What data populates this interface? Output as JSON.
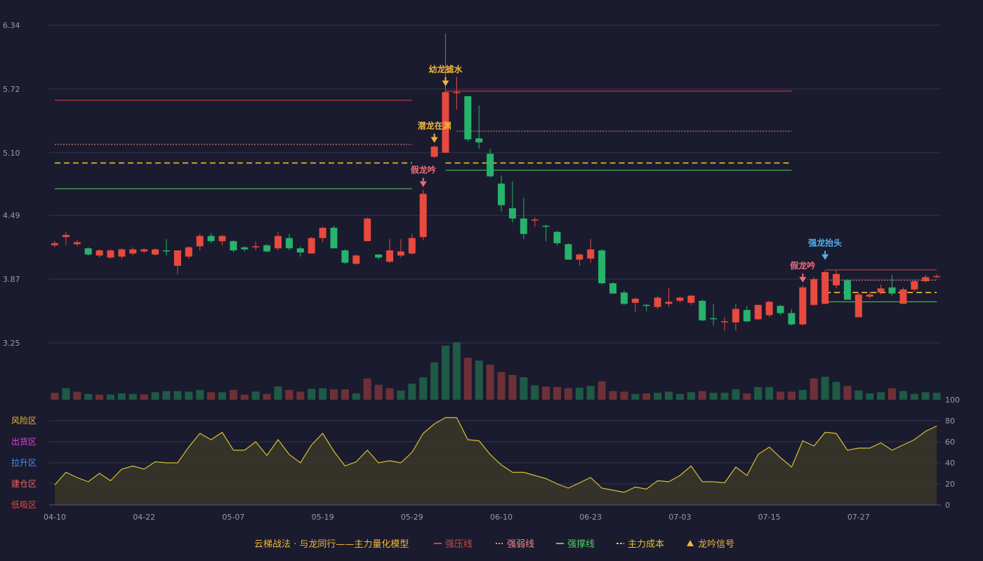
{
  "chart_data": {
    "type": "candlestick",
    "colors": {
      "up": "#e84a3f",
      "down": "#26b36b",
      "vol_up": "#6e3038",
      "vol_down": "#1e5a45",
      "pressure": "#d4434a",
      "weak": "#f08a8a",
      "support": "#50d060",
      "cost": "#e8c22a",
      "osc": "#d8c030",
      "gold": "#f2b53a",
      "blue": "#4fb0f0",
      "pink": "#f06a7a"
    },
    "price_axis": {
      "min": 3.25,
      "max": 6.34,
      "ticks": [
        "6.34",
        "5.72",
        "5.10",
        "4.49",
        "3.87",
        "3.25"
      ]
    },
    "osc_axis": {
      "min": 0,
      "max": 100,
      "ticks": [
        "100",
        "80",
        "60",
        "40",
        "20",
        "0"
      ]
    },
    "x_labels": [
      {
        "i": 0,
        "label": "04-10"
      },
      {
        "i": 8,
        "label": "04-22"
      },
      {
        "i": 16,
        "label": "05-07"
      },
      {
        "i": 24,
        "label": "05-19"
      },
      {
        "i": 32,
        "label": "05-29"
      },
      {
        "i": 40,
        "label": "06-10"
      },
      {
        "i": 48,
        "label": "06-23"
      },
      {
        "i": 56,
        "label": "07-03"
      },
      {
        "i": 64,
        "label": "07-15"
      },
      {
        "i": 72,
        "label": "07-27"
      }
    ],
    "candles": [
      [
        4.2,
        4.22,
        4.18,
        4.24
      ],
      [
        4.28,
        4.3,
        4.2,
        4.33
      ],
      [
        4.21,
        4.23,
        4.19,
        4.25
      ],
      [
        4.17,
        4.11,
        4.1,
        4.18
      ],
      [
        4.1,
        4.15,
        4.08,
        4.16
      ],
      [
        4.08,
        4.15,
        4.07,
        4.16
      ],
      [
        4.09,
        4.16,
        4.07,
        4.17
      ],
      [
        4.12,
        4.16,
        4.1,
        4.18
      ],
      [
        4.14,
        4.16,
        4.12,
        4.17
      ],
      [
        4.11,
        4.16,
        4.1,
        4.17
      ],
      [
        4.15,
        4.14,
        4.1,
        4.26
      ],
      [
        4.0,
        4.15,
        3.92,
        4.15
      ],
      [
        4.09,
        4.18,
        4.07,
        4.19
      ],
      [
        4.19,
        4.29,
        4.15,
        4.31
      ],
      [
        4.29,
        4.24,
        4.22,
        4.32
      ],
      [
        4.24,
        4.29,
        4.2,
        4.3
      ],
      [
        4.24,
        4.15,
        4.13,
        4.25
      ],
      [
        4.18,
        4.16,
        4.14,
        4.19
      ],
      [
        4.18,
        4.19,
        4.15,
        4.24
      ],
      [
        4.2,
        4.14,
        4.13,
        4.21
      ],
      [
        4.17,
        4.29,
        4.15,
        4.33
      ],
      [
        4.27,
        4.17,
        4.15,
        4.31
      ],
      [
        4.17,
        4.13,
        4.09,
        4.19
      ],
      [
        4.12,
        4.27,
        4.12,
        4.28
      ],
      [
        4.27,
        4.37,
        4.23,
        4.38
      ],
      [
        4.37,
        4.17,
        4.17,
        4.39
      ],
      [
        4.15,
        4.03,
        4.02,
        4.16
      ],
      [
        4.02,
        4.1,
        4.01,
        4.11
      ],
      [
        4.24,
        4.46,
        4.24,
        4.47
      ],
      [
        4.11,
        4.08,
        4.06,
        4.11
      ],
      [
        4.04,
        4.15,
        4.03,
        4.26
      ],
      [
        4.1,
        4.14,
        4.08,
        4.26
      ],
      [
        4.12,
        4.27,
        4.11,
        4.31
      ],
      [
        4.28,
        4.7,
        4.25,
        4.74
      ],
      [
        5.06,
        5.16,
        5.05,
        5.17
      ],
      [
        5.1,
        5.69,
        5.1,
        6.26
      ],
      [
        5.69,
        5.69,
        5.52,
        5.84
      ],
      [
        5.65,
        5.23,
        5.21,
        5.65
      ],
      [
        5.24,
        5.2,
        5.14,
        5.56
      ],
      [
        5.09,
        4.87,
        4.86,
        5.14
      ],
      [
        4.8,
        4.59,
        4.53,
        4.88
      ],
      [
        4.56,
        4.46,
        4.42,
        4.82
      ],
      [
        4.46,
        4.31,
        4.26,
        4.66
      ],
      [
        4.45,
        4.45,
        4.38,
        4.47
      ],
      [
        4.39,
        4.38,
        4.24,
        4.4
      ],
      [
        4.33,
        4.22,
        4.2,
        4.34
      ],
      [
        4.21,
        4.06,
        4.06,
        4.22
      ],
      [
        4.06,
        4.11,
        4.0,
        4.12
      ],
      [
        4.07,
        4.16,
        4.03,
        4.26
      ],
      [
        4.15,
        3.83,
        3.82,
        4.16
      ],
      [
        3.83,
        3.73,
        3.73,
        3.84
      ],
      [
        3.74,
        3.63,
        3.62,
        3.76
      ],
      [
        3.64,
        3.68,
        3.55,
        3.69
      ],
      [
        3.62,
        3.61,
        3.56,
        3.63
      ],
      [
        3.6,
        3.69,
        3.58,
        3.71
      ],
      [
        3.63,
        3.65,
        3.6,
        3.78
      ],
      [
        3.66,
        3.69,
        3.64,
        3.7
      ],
      [
        3.64,
        3.71,
        3.62,
        3.71
      ],
      [
        3.66,
        3.47,
        3.46,
        3.67
      ],
      [
        3.49,
        3.48,
        3.42,
        3.63
      ],
      [
        3.46,
        3.46,
        3.37,
        3.5
      ],
      [
        3.45,
        3.58,
        3.37,
        3.63
      ],
      [
        3.57,
        3.46,
        3.45,
        3.61
      ],
      [
        3.48,
        3.62,
        3.47,
        3.62
      ],
      [
        3.52,
        3.65,
        3.5,
        3.66
      ],
      [
        3.61,
        3.54,
        3.52,
        3.62
      ],
      [
        3.54,
        3.43,
        3.42,
        3.58
      ],
      [
        3.43,
        3.79,
        3.42,
        3.81
      ],
      [
        3.62,
        3.87,
        3.61,
        3.89
      ],
      [
        3.63,
        3.94,
        3.63,
        3.95
      ],
      [
        3.81,
        3.92,
        3.78,
        3.96
      ],
      [
        3.86,
        3.67,
        3.67,
        3.87
      ],
      [
        3.5,
        3.72,
        3.5,
        3.74
      ],
      [
        3.7,
        3.72,
        3.68,
        3.75
      ],
      [
        3.74,
        3.78,
        3.72,
        3.82
      ],
      [
        3.79,
        3.73,
        3.71,
        3.91
      ],
      [
        3.63,
        3.77,
        3.63,
        3.79
      ],
      [
        3.77,
        3.85,
        3.75,
        3.86
      ],
      [
        3.85,
        3.89,
        3.84,
        3.91
      ],
      [
        3.9,
        3.9,
        3.88,
        3.92
      ]
    ],
    "volume": [
      [
        0.12,
        "u"
      ],
      [
        0.2,
        "d"
      ],
      [
        0.14,
        "u"
      ],
      [
        0.1,
        "d"
      ],
      [
        0.09,
        "u"
      ],
      [
        0.09,
        "d"
      ],
      [
        0.11,
        "d"
      ],
      [
        0.1,
        "d"
      ],
      [
        0.09,
        "u"
      ],
      [
        0.13,
        "d"
      ],
      [
        0.15,
        "d"
      ],
      [
        0.15,
        "d"
      ],
      [
        0.14,
        "d"
      ],
      [
        0.17,
        "d"
      ],
      [
        0.13,
        "u"
      ],
      [
        0.13,
        "d"
      ],
      [
        0.17,
        "u"
      ],
      [
        0.09,
        "u"
      ],
      [
        0.14,
        "d"
      ],
      [
        0.1,
        "u"
      ],
      [
        0.23,
        "d"
      ],
      [
        0.17,
        "u"
      ],
      [
        0.14,
        "u"
      ],
      [
        0.19,
        "d"
      ],
      [
        0.2,
        "d"
      ],
      [
        0.18,
        "u"
      ],
      [
        0.18,
        "u"
      ],
      [
        0.11,
        "d"
      ],
      [
        0.37,
        "u"
      ],
      [
        0.26,
        "u"
      ],
      [
        0.2,
        "u"
      ],
      [
        0.16,
        "d"
      ],
      [
        0.28,
        "d"
      ],
      [
        0.39,
        "d"
      ],
      [
        0.65,
        "d"
      ],
      [
        0.94,
        "d"
      ],
      [
        1.0,
        "d"
      ],
      [
        0.73,
        "u"
      ],
      [
        0.68,
        "d"
      ],
      [
        0.61,
        "u"
      ],
      [
        0.48,
        "u"
      ],
      [
        0.43,
        "u"
      ],
      [
        0.39,
        "d"
      ],
      [
        0.25,
        "d"
      ],
      [
        0.23,
        "u"
      ],
      [
        0.22,
        "u"
      ],
      [
        0.2,
        "u"
      ],
      [
        0.21,
        "d"
      ],
      [
        0.24,
        "d"
      ],
      [
        0.32,
        "u"
      ],
      [
        0.15,
        "u"
      ],
      [
        0.14,
        "u"
      ],
      [
        0.1,
        "d"
      ],
      [
        0.11,
        "u"
      ],
      [
        0.12,
        "d"
      ],
      [
        0.14,
        "d"
      ],
      [
        0.1,
        "d"
      ],
      [
        0.13,
        "d"
      ],
      [
        0.15,
        "u"
      ],
      [
        0.12,
        "d"
      ],
      [
        0.12,
        "d"
      ],
      [
        0.18,
        "d"
      ],
      [
        0.11,
        "u"
      ],
      [
        0.22,
        "d"
      ],
      [
        0.22,
        "d"
      ],
      [
        0.14,
        "u"
      ],
      [
        0.14,
        "u"
      ],
      [
        0.17,
        "d"
      ],
      [
        0.37,
        "u"
      ],
      [
        0.4,
        "d"
      ],
      [
        0.31,
        "d"
      ],
      [
        0.24,
        "u"
      ],
      [
        0.16,
        "d"
      ],
      [
        0.11,
        "d"
      ],
      [
        0.13,
        "d"
      ],
      [
        0.2,
        "u"
      ],
      [
        0.15,
        "d"
      ],
      [
        0.1,
        "d"
      ],
      [
        0.13,
        "d"
      ],
      [
        0.12,
        "d"
      ]
    ],
    "oscillator": [
      19,
      31,
      26,
      22,
      30,
      23,
      34,
      37,
      34,
      41,
      40,
      40,
      55,
      68,
      62,
      69,
      52,
      52,
      60,
      47,
      62,
      48,
      40,
      57,
      68,
      51,
      37,
      41,
      52,
      40,
      42,
      40,
      50,
      68,
      77,
      83,
      83,
      62,
      61,
      48,
      38,
      31,
      31,
      28,
      25,
      20,
      16,
      21,
      26,
      16,
      14,
      12,
      17,
      15,
      23,
      22,
      28,
      37,
      22,
      22,
      21,
      36,
      28,
      48,
      55,
      45,
      36,
      61,
      56,
      69,
      68,
      52,
      54,
      54,
      59,
      52,
      57,
      62,
      70,
      75
    ],
    "levels": [
      {
        "name": "pressure",
        "from": 0,
        "to": 32,
        "value": 5.61,
        "style": "solid"
      },
      {
        "name": "weak",
        "from": 0,
        "to": 32,
        "value": 5.18,
        "style": "dotted"
      },
      {
        "name": "cost",
        "from": 0,
        "to": 32,
        "value": 5.0,
        "style": "dashed"
      },
      {
        "name": "support",
        "from": 0,
        "to": 32,
        "value": 4.75,
        "style": "solid"
      },
      {
        "name": "pressure",
        "from": 35,
        "to": 66,
        "value": 5.7,
        "style": "solid"
      },
      {
        "name": "weak",
        "from": 36,
        "to": 66,
        "value": 5.31,
        "style": "dotted"
      },
      {
        "name": "cost",
        "from": 35,
        "to": 66,
        "value": 5.0,
        "style": "dashed"
      },
      {
        "name": "support",
        "from": 35,
        "to": 66,
        "value": 4.93,
        "style": "solid"
      },
      {
        "name": "pressure",
        "from": 69,
        "to": 79,
        "value": 3.96,
        "style": "solid"
      },
      {
        "name": "weak",
        "from": 69,
        "to": 79,
        "value": 3.86,
        "style": "dotted"
      },
      {
        "name": "cost",
        "from": 69,
        "to": 79,
        "value": 3.74,
        "style": "dashed"
      },
      {
        "name": "support",
        "from": 69,
        "to": 79,
        "value": 3.65,
        "style": "solid"
      }
    ],
    "annotations": [
      {
        "i": 33,
        "label": "假龙吟",
        "color": "pink",
        "price": 4.74
      },
      {
        "i": 34,
        "label": "潜龙在渊",
        "color": "gold",
        "price": 5.17
      },
      {
        "i": 35,
        "label": "幼龙摅水",
        "color": "gold",
        "price": 5.72
      },
      {
        "i": 67,
        "label": "假龙吟",
        "color": "pink",
        "price": 3.81
      },
      {
        "i": 69,
        "label": "强龙抬头",
        "color": "blue",
        "price": 4.03
      }
    ],
    "zones": [
      {
        "label": "风险区",
        "color": "#f2b53a",
        "level": 80
      },
      {
        "label": "出货区",
        "color": "#e040e0",
        "level": 60
      },
      {
        "label": "拉升区",
        "color": "#4a8ff0",
        "level": 40
      },
      {
        "label": "建仓区",
        "color": "#f06060",
        "level": 20
      },
      {
        "label": "低吸区",
        "color": "#e84a3f",
        "level": 0
      }
    ],
    "legend": {
      "title": "云梯战法 · 与龙同行——主力量化模型",
      "items": [
        {
          "label": "强压线",
          "color": "#d4434a",
          "style": "solid"
        },
        {
          "label": "强弱线",
          "color": "#f08a8a",
          "style": "dotted"
        },
        {
          "label": "强撑线",
          "color": "#50d060",
          "style": "solid"
        },
        {
          "label": "主力成本",
          "color": "#e8c22a",
          "style": "dashed"
        },
        {
          "label": "龙吟信号",
          "color": "#f2b53a",
          "style": "triangle"
        }
      ]
    }
  }
}
